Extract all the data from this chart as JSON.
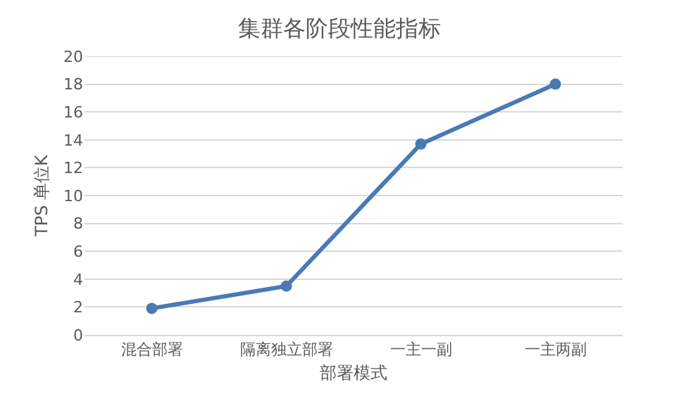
{
  "chart_data": {
    "type": "line",
    "title": "集群各阶段性能指标",
    "xlabel": "部署模式",
    "ylabel": "TPS 单位K",
    "categories": [
      "混合部署",
      "隔离独立部署",
      "一主一副",
      "一主两副"
    ],
    "series": [
      {
        "color": "#4a7ab5",
        "values": [
          1.9,
          3.5,
          13.7,
          18.0
        ]
      }
    ],
    "ylim": [
      0,
      20
    ],
    "yticks": [
      0,
      2,
      4,
      6,
      8,
      10,
      12,
      14,
      16,
      18,
      20
    ],
    "grid": "y",
    "marker": "circle",
    "line_style": "solid"
  }
}
